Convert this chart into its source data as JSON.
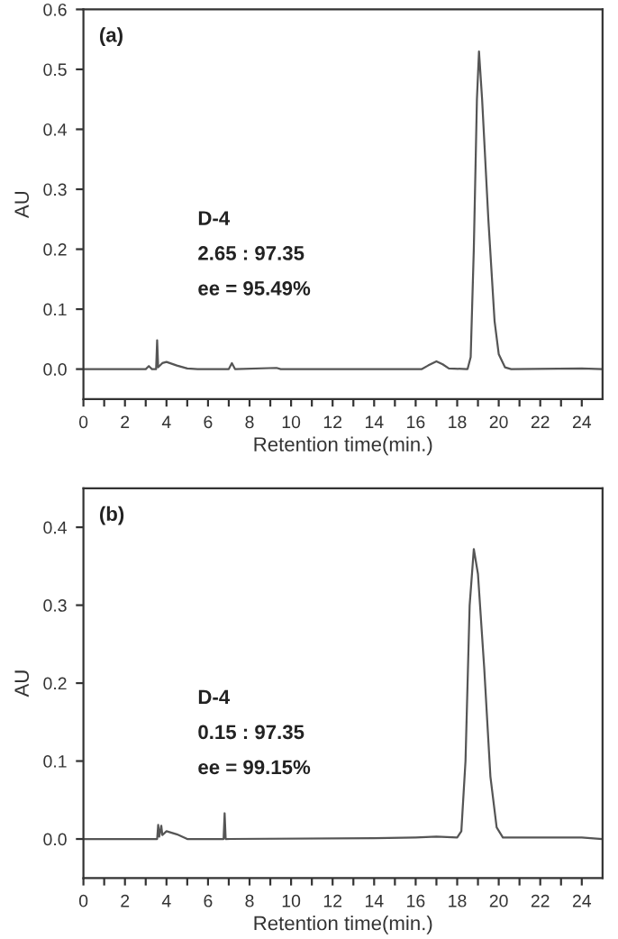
{
  "chart_data": [
    {
      "type": "line",
      "xlabel": "Retention time(min.)",
      "ylabel": "AU",
      "annotations": [
        "(a)",
        "D-4",
        "2.65 : 97.35",
        "ee = 95.49%"
      ],
      "x": [
        0,
        3.0,
        3.15,
        3.3,
        3.5,
        3.55,
        3.6,
        3.8,
        4.0,
        4.5,
        5.0,
        5.5,
        7.0,
        7.15,
        7.3,
        9.3,
        9.5,
        16.3,
        16.6,
        17.0,
        17.3,
        17.6,
        18.5,
        18.65,
        18.8,
        18.95,
        19.05,
        19.2,
        19.5,
        19.8,
        20.0,
        20.3,
        20.6,
        24,
        25
      ],
      "series": [
        {
          "color": "#555555",
          "values": [
            0,
            0,
            0.005,
            0,
            0,
            0.048,
            0.003,
            0.01,
            0.012,
            0.006,
            0.001,
            0,
            0,
            0.01,
            0,
            0.002,
            0,
            0,
            0.006,
            0.013,
            0.008,
            0.001,
            0,
            0.02,
            0.2,
            0.45,
            0.53,
            0.45,
            0.25,
            0.08,
            0.025,
            0.003,
            0,
            0.001,
            0
          ]
        }
      ],
      "xlim": [
        0,
        25
      ],
      "ylim": [
        -0.05,
        0.6
      ],
      "xticks": [
        0,
        {
          "value": 1,
          "label": null
        },
        2,
        {
          "value": 3,
          "label": null
        },
        4,
        {
          "value": 5,
          "label": null
        },
        6,
        {
          "value": 7,
          "label": null
        },
        8,
        {
          "value": 9,
          "label": null
        },
        10,
        {
          "value": 11,
          "label": null
        },
        12,
        {
          "value": 13,
          "label": null
        },
        14,
        {
          "value": 15,
          "label": null
        },
        16,
        {
          "value": 17,
          "label": null
        },
        18,
        {
          "value": 19,
          "label": null
        },
        20,
        {
          "value": 21,
          "label": null
        },
        22,
        {
          "value": 23,
          "label": null
        },
        24
      ],
      "yticks": [
        {
          "value": 0,
          "label": "0.0"
        },
        0.1,
        0.2,
        0.3,
        0.4,
        0.5,
        0.6
      ],
      "grid": false,
      "legend": false,
      "marker": "none",
      "line_style": "solid"
    },
    {
      "type": "line",
      "xlabel": "Retention time(min.)",
      "ylabel": "AU",
      "annotations": [
        "(b)",
        "D-4",
        "0.15 : 97.35",
        "ee = 99.15%"
      ],
      "x": [
        0,
        3.55,
        3.6,
        3.65,
        3.75,
        3.8,
        4.0,
        4.5,
        5.0,
        6.75,
        6.8,
        6.85,
        14,
        16,
        17,
        18.0,
        18.2,
        18.4,
        18.6,
        18.8,
        19.0,
        19.3,
        19.6,
        19.9,
        20.2,
        24,
        25
      ],
      "series": [
        {
          "color": "#555555",
          "values": [
            0,
            0,
            0.018,
            0.003,
            0.017,
            0.005,
            0.01,
            0.006,
            0,
            0,
            0.033,
            0,
            0.001,
            0.002,
            0.003,
            0.002,
            0.01,
            0.1,
            0.3,
            0.372,
            0.34,
            0.22,
            0.08,
            0.015,
            0.002,
            0.002,
            0
          ]
        }
      ],
      "xlim": [
        0,
        25
      ],
      "ylim": [
        -0.05,
        0.45
      ],
      "xticks": [
        0,
        {
          "value": 1,
          "label": null
        },
        2,
        {
          "value": 3,
          "label": null
        },
        4,
        {
          "value": 5,
          "label": null
        },
        6,
        {
          "value": 7,
          "label": null
        },
        8,
        {
          "value": 9,
          "label": null
        },
        10,
        {
          "value": 11,
          "label": null
        },
        12,
        {
          "value": 13,
          "label": null
        },
        14,
        {
          "value": 15,
          "label": null
        },
        16,
        {
          "value": 17,
          "label": null
        },
        18,
        {
          "value": 19,
          "label": null
        },
        20,
        {
          "value": 21,
          "label": null
        },
        22,
        {
          "value": 23,
          "label": null
        },
        24
      ],
      "yticks": [
        {
          "value": 0,
          "label": "0.0"
        },
        0.1,
        0.2,
        0.3,
        0.4
      ],
      "grid": false,
      "legend": false,
      "marker": "none",
      "line_style": "solid"
    }
  ]
}
